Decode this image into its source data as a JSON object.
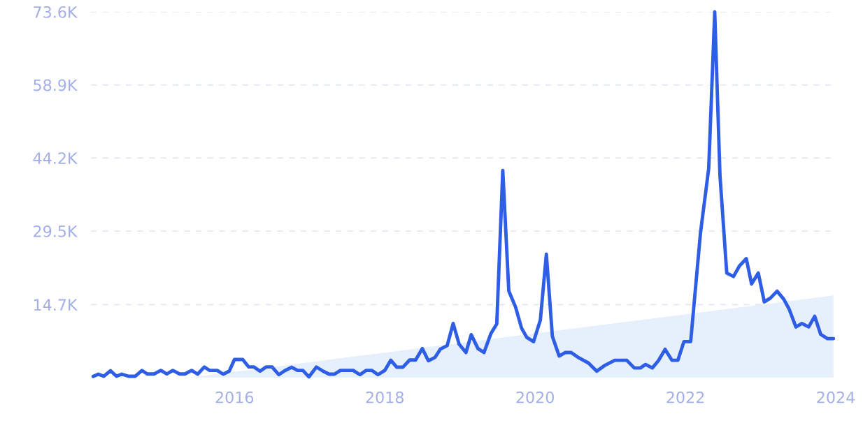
{
  "chart_data": {
    "type": "line",
    "xlim": [
      2014.09,
      2024.0
    ],
    "xticks": [
      2016,
      2018,
      2020,
      2022,
      2024
    ],
    "ylim": [
      0,
      73600
    ],
    "yticks": [
      {
        "value": 14700,
        "label": "14.7K"
      },
      {
        "value": 29500,
        "label": "29.5K"
      },
      {
        "value": 44200,
        "label": "44.2K"
      },
      {
        "value": 58900,
        "label": "58.9K"
      },
      {
        "value": 73600,
        "label": "73.6K"
      }
    ],
    "grid": "y",
    "legend": false,
    "marker": "none",
    "line_style": "solid",
    "series": [
      {
        "type": "area",
        "color": "#e6effc",
        "x": [
          2015.39,
          2023.97
        ],
        "values": [
          0,
          16550
        ]
      },
      {
        "type": "line",
        "color": "#2f5ee6",
        "x": [
          2014.12,
          2014.19,
          2014.26,
          2014.35,
          2014.43,
          2014.5,
          2014.59,
          2014.68,
          2014.77,
          2014.84,
          2014.93,
          2015.02,
          2015.1,
          2015.18,
          2015.27,
          2015.34,
          2015.43,
          2015.51,
          2015.6,
          2015.67,
          2015.77,
          2015.85,
          2015.93,
          2016.0,
          2016.11,
          2016.19,
          2016.26,
          2016.34,
          2016.42,
          2016.5,
          2016.59,
          2016.67,
          2016.76,
          2016.84,
          2016.91,
          2016.99,
          2017.09,
          2017.18,
          2017.26,
          2017.33,
          2017.41,
          2017.58,
          2017.67,
          2017.75,
          2017.83,
          2017.91,
          2018.0,
          2018.08,
          2018.16,
          2018.24,
          2018.33,
          2018.41,
          2018.5,
          2018.58,
          2018.67,
          2018.74,
          2018.83,
          2018.91,
          2018.99,
          2019.08,
          2019.15,
          2019.24,
          2019.32,
          2019.41,
          2019.49,
          2019.57,
          2019.65,
          2019.74,
          2019.82,
          2019.89,
          2019.98,
          2020.07,
          2020.15,
          2020.23,
          2020.32,
          2020.4,
          2020.48,
          2020.57,
          2020.71,
          2020.82,
          2020.92,
          2021.06,
          2021.22,
          2021.32,
          2021.4,
          2021.47,
          2021.56,
          2021.64,
          2021.73,
          2021.82,
          2021.9,
          2021.98,
          2022.07,
          2022.2,
          2022.31,
          2022.39,
          2022.46,
          2022.55,
          2022.64,
          2022.72,
          2022.81,
          2022.88,
          2022.97,
          2023.05,
          2023.13,
          2023.22,
          2023.31,
          2023.38,
          2023.47,
          2023.55,
          2023.64,
          2023.72,
          2023.8,
          2023.89,
          2023.97
        ],
        "values": [
          240,
          700,
          280,
          1400,
          280,
          700,
          280,
          280,
          1450,
          740,
          740,
          1450,
          740,
          1450,
          740,
          740,
          1450,
          700,
          2150,
          1450,
          1450,
          700,
          1300,
          3650,
          3650,
          2150,
          2150,
          1300,
          2150,
          2150,
          600,
          1400,
          2100,
          1450,
          1450,
          150,
          2150,
          1300,
          700,
          700,
          1450,
          1450,
          600,
          1450,
          1450,
          600,
          1450,
          3500,
          2100,
          2100,
          3550,
          3550,
          5850,
          3400,
          4100,
          5750,
          6450,
          10900,
          6700,
          5050,
          8650,
          5850,
          5050,
          8800,
          10800,
          41700,
          17450,
          14200,
          9950,
          8100,
          7250,
          11600,
          24850,
          8300,
          4350,
          5050,
          5050,
          4100,
          2950,
          1300,
          2400,
          3500,
          3500,
          1950,
          1950,
          2650,
          1950,
          3400,
          5700,
          3500,
          3500,
          7250,
          7250,
          29050,
          42100,
          73600,
          40650,
          21050,
          20350,
          22500,
          23950,
          18850,
          21050,
          15250,
          16000,
          17400,
          15750,
          13800,
          10200,
          10900,
          10200,
          12350,
          8700,
          7850,
          7850
        ]
      }
    ]
  }
}
